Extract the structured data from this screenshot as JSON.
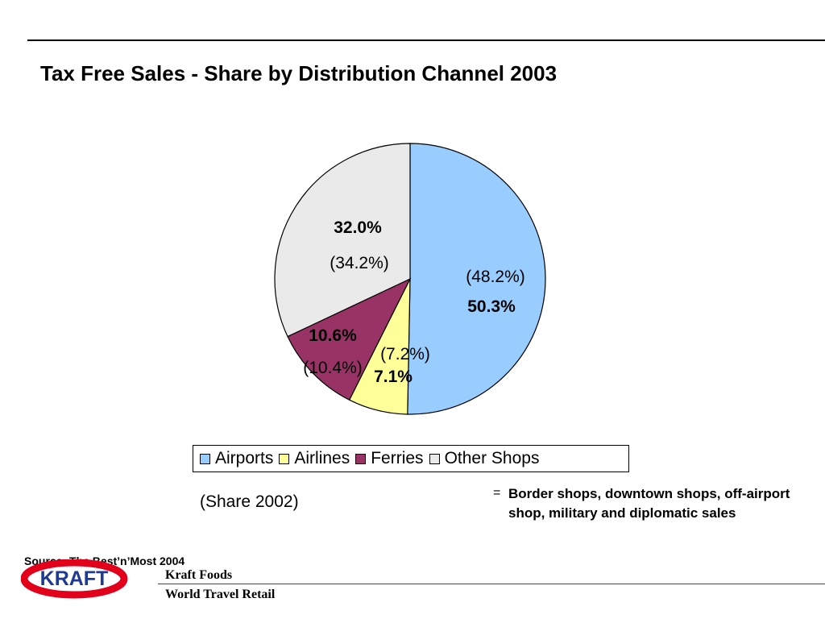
{
  "title": "Tax Free Sales - Share by Distribution Channel 2003",
  "chart_data": {
    "type": "pie",
    "title": "Tax Free Sales - Share by Distribution Channel 2003",
    "unit": "%",
    "slices": [
      {
        "name": "Airports",
        "value": 50.3,
        "value_label": "50.3%",
        "prev_label": "(48.2%)",
        "prev_value": 48.2,
        "color": "#99CCFF"
      },
      {
        "name": "Airlines",
        "value": 7.1,
        "value_label": "7.1%",
        "prev_label": "(7.2%)",
        "prev_value": 7.2,
        "color": "#FFFF99"
      },
      {
        "name": "Ferries",
        "value": 10.6,
        "value_label": "10.6%",
        "prev_label": "(10.4%)",
        "prev_value": 10.4,
        "color": "#993366"
      },
      {
        "name": "Other Shops",
        "value": 32.0,
        "value_label": "32.0%",
        "prev_label": "(34.2%)",
        "prev_value": 34.2,
        "color": "#EAEAEA"
      }
    ],
    "legend": [
      "Airports",
      "Airlines",
      "Ferries",
      "Other Shops"
    ],
    "legend_position": "bottom"
  },
  "share_note": "(Share 2002)",
  "footnote": {
    "marker": "=",
    "text": "Border shops, downtown shops, off-airport shop, military and diplomatic sales"
  },
  "source": "Source: The Best’n’Most 2004",
  "footer": {
    "logo_text": "KRAFT",
    "company": "Kraft Foods",
    "division": "World Travel Retail"
  },
  "colors": {
    "logo_red": "#E3001B",
    "logo_blue": "#1F3A93"
  }
}
